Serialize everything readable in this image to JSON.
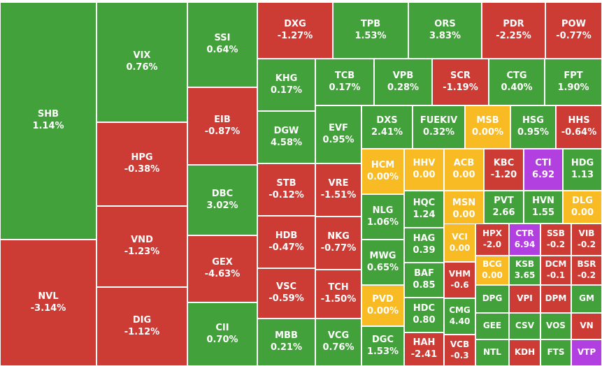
{
  "chart_data": {
    "type": "treemap",
    "colors": {
      "up": "#43a13b",
      "down": "#cd3b35",
      "flat": "#f8bb24",
      "ceiling": "#b23fdf"
    },
    "items": [
      {
        "ticker": "SHB",
        "change": "1.14%",
        "status": "up"
      },
      {
        "ticker": "NVL",
        "change": "-3.14%",
        "status": "down"
      },
      {
        "ticker": "VIX",
        "change": "0.76%",
        "status": "up"
      },
      {
        "ticker": "HPG",
        "change": "-0.38%",
        "status": "down"
      },
      {
        "ticker": "VND",
        "change": "-1.23%",
        "status": "down"
      },
      {
        "ticker": "DIG",
        "change": "-1.12%",
        "status": "down"
      },
      {
        "ticker": "SSI",
        "change": "0.64%",
        "status": "up"
      },
      {
        "ticker": "EIB",
        "change": "-0.87%",
        "status": "down"
      },
      {
        "ticker": "DBC",
        "change": "3.02%",
        "status": "up"
      },
      {
        "ticker": "GEX",
        "change": "-4.63%",
        "status": "down"
      },
      {
        "ticker": "CII",
        "change": "0.70%",
        "status": "up"
      },
      {
        "ticker": "DXG",
        "change": "-1.27%",
        "status": "down"
      },
      {
        "ticker": "TPB",
        "change": "1.53%",
        "status": "up"
      },
      {
        "ticker": "ORS",
        "change": "3.83%",
        "status": "up"
      },
      {
        "ticker": "PDR",
        "change": "-2.25%",
        "status": "down"
      },
      {
        "ticker": "POW",
        "change": "-0.77%",
        "status": "down"
      },
      {
        "ticker": "KHG",
        "change": "0.17%",
        "status": "up"
      },
      {
        "ticker": "TCB",
        "change": "0.17%",
        "status": "up"
      },
      {
        "ticker": "VPB",
        "change": "0.28%",
        "status": "up"
      },
      {
        "ticker": "SCR",
        "change": "-1.19%",
        "status": "down"
      },
      {
        "ticker": "CTG",
        "change": "0.40%",
        "status": "up"
      },
      {
        "ticker": "FPT",
        "change": "1.90%",
        "status": "up"
      },
      {
        "ticker": "DGW",
        "change": "4.58%",
        "status": "up"
      },
      {
        "ticker": "STB",
        "change": "-0.12%",
        "status": "down"
      },
      {
        "ticker": "HDB",
        "change": "-0.47%",
        "status": "down"
      },
      {
        "ticker": "VSC",
        "change": "-0.59%",
        "status": "down"
      },
      {
        "ticker": "MBB",
        "change": "0.21%",
        "status": "up"
      },
      {
        "ticker": "EVF",
        "change": "0.95%",
        "status": "up"
      },
      {
        "ticker": "VRE",
        "change": "-1.51%",
        "status": "down"
      },
      {
        "ticker": "NKG",
        "change": "-0.77%",
        "status": "down"
      },
      {
        "ticker": "TCH",
        "change": "-1.50%",
        "status": "down"
      },
      {
        "ticker": "VCG",
        "change": "0.76%",
        "status": "up"
      },
      {
        "ticker": "DXS",
        "change": "2.41%",
        "status": "up"
      },
      {
        "ticker": "FUEKIV",
        "change": "0.32%",
        "status": "up"
      },
      {
        "ticker": "MSB",
        "change": "0.00%",
        "status": "flat"
      },
      {
        "ticker": "HSG",
        "change": "0.95%",
        "status": "up"
      },
      {
        "ticker": "HHS",
        "change": "-0.64%",
        "status": "down"
      },
      {
        "ticker": "HCM",
        "change": "0.00%",
        "status": "flat"
      },
      {
        "ticker": "NLG",
        "change": "1.06%",
        "status": "up"
      },
      {
        "ticker": "MWG",
        "change": "0.65%",
        "status": "up"
      },
      {
        "ticker": "PVD",
        "change": "0.00%",
        "status": "flat"
      },
      {
        "ticker": "DGC",
        "change": "1.53%",
        "status": "up"
      },
      {
        "ticker": "HHV",
        "change": "0.00",
        "status": "flat"
      },
      {
        "ticker": "ACB",
        "change": "0.00",
        "status": "flat"
      },
      {
        "ticker": "KBC",
        "change": "-1.20",
        "status": "down"
      },
      {
        "ticker": "CTI",
        "change": "6.92",
        "status": "ceiling"
      },
      {
        "ticker": "HDG",
        "change": "1.13",
        "status": "up"
      },
      {
        "ticker": "HQC",
        "change": "1.24",
        "status": "up"
      },
      {
        "ticker": "MSN",
        "change": "0.00",
        "status": "flat"
      },
      {
        "ticker": "PVT",
        "change": "2.66",
        "status": "up"
      },
      {
        "ticker": "HVN",
        "change": "1.55",
        "status": "up"
      },
      {
        "ticker": "DLG",
        "change": "0.00",
        "status": "flat"
      },
      {
        "ticker": "HAG",
        "change": "0.39",
        "status": "up"
      },
      {
        "ticker": "VCI",
        "change": "0.00",
        "status": "flat"
      },
      {
        "ticker": "HPX",
        "change": "-2.0",
        "status": "down"
      },
      {
        "ticker": "CTR",
        "change": "6.94",
        "status": "ceiling"
      },
      {
        "ticker": "SSB",
        "change": "-0.2",
        "status": "down"
      },
      {
        "ticker": "VIB",
        "change": "-0.2",
        "status": "down"
      },
      {
        "ticker": "BAF",
        "change": "0.85",
        "status": "up"
      },
      {
        "ticker": "VHM",
        "change": "-0.6",
        "status": "down"
      },
      {
        "ticker": "BCG",
        "change": "0.00",
        "status": "flat"
      },
      {
        "ticker": "KSB",
        "change": "3.65",
        "status": "up"
      },
      {
        "ticker": "DCM",
        "change": "-0.1",
        "status": "down"
      },
      {
        "ticker": "BSR",
        "change": "-0.2",
        "status": "down"
      },
      {
        "ticker": "HDC",
        "change": "0.80",
        "status": "up"
      },
      {
        "ticker": "CMG",
        "change": "4.40",
        "status": "up"
      },
      {
        "ticker": "DPG",
        "change": "",
        "status": "up"
      },
      {
        "ticker": "VPI",
        "change": "",
        "status": "down"
      },
      {
        "ticker": "DPM",
        "change": "",
        "status": "down"
      },
      {
        "ticker": "GM",
        "change": "",
        "status": "up"
      },
      {
        "ticker": "GEE",
        "change": "",
        "status": "up"
      },
      {
        "ticker": "CSV",
        "change": "",
        "status": "up"
      },
      {
        "ticker": "VOS",
        "change": "",
        "status": "up"
      },
      {
        "ticker": "VN",
        "change": "",
        "status": "down"
      },
      {
        "ticker": "HAH",
        "change": "-2.41",
        "status": "down"
      },
      {
        "ticker": "VCB",
        "change": "-0.3",
        "status": "down"
      },
      {
        "ticker": "NTL",
        "change": "",
        "status": "up"
      },
      {
        "ticker": "KDH",
        "change": "",
        "status": "down"
      },
      {
        "ticker": "FTS",
        "change": "",
        "status": "up"
      },
      {
        "ticker": "VTP",
        "change": "",
        "status": "ceiling"
      }
    ]
  }
}
